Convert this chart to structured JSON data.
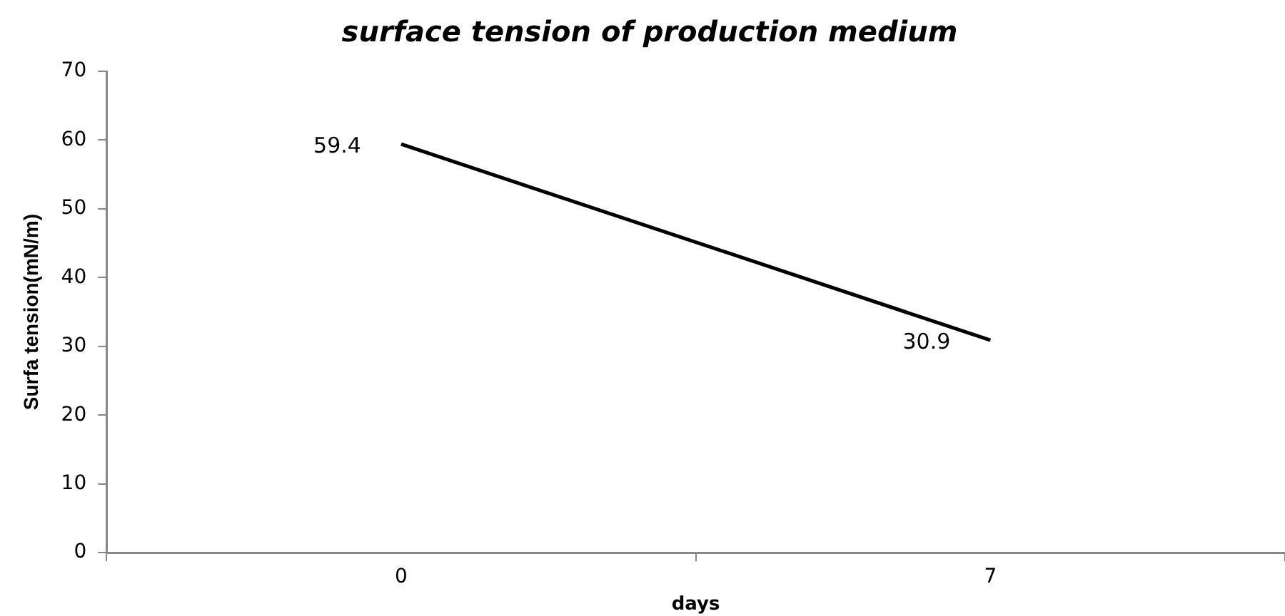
{
  "chart_data": {
    "type": "line",
    "title": "surface tension of production medium",
    "xlabel": "days",
    "ylabel": "Surfa tension(mN/m)",
    "categories": [
      "0",
      "7"
    ],
    "series": [
      {
        "color": "#000000",
        "values": [
          59.4,
          30.9
        ]
      }
    ],
    "ylim": [
      0,
      70
    ],
    "yticks": [
      0,
      10,
      20,
      30,
      40,
      50,
      60,
      70
    ],
    "grid": false,
    "legend": false,
    "marker": "none",
    "line_style": "solid",
    "data_labels": true
  }
}
